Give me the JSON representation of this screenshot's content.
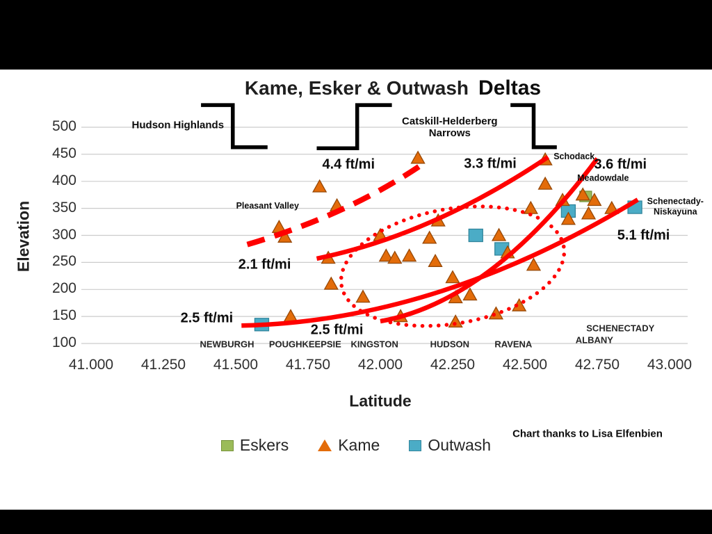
{
  "title": {
    "main": "Kame, Esker & Outwash",
    "added": "Deltas"
  },
  "axes": {
    "x_label": "Latitude",
    "y_label": "Elevation",
    "x_ticks": [
      "41.000",
      "41.250",
      "41.500",
      "41.750",
      "42.000",
      "42.250",
      "42.500",
      "42.750",
      "43.000"
    ],
    "y_ticks": [
      "500",
      "450",
      "400",
      "350",
      "300",
      "250",
      "200",
      "150",
      "100"
    ]
  },
  "legend": [
    {
      "label": "Eskers",
      "marker": "square",
      "color": "#9BBB59",
      "border": "#77933C"
    },
    {
      "label": "Kame",
      "marker": "triangle",
      "color": "#E36C0A",
      "border": "#974806"
    },
    {
      "label": "Outwash",
      "marker": "square",
      "color": "#4BACC6",
      "border": "#31859C"
    }
  ],
  "credit": "Chart thanks to Lisa Elfenbien",
  "chart_data": {
    "type": "scatter",
    "title": "Kame, Esker & Outwash Deltas",
    "xlabel": "Latitude",
    "ylabel": "Elevation",
    "xlim": [
      41.0,
      43.0
    ],
    "ylim": [
      100,
      500
    ],
    "x_tick_step": 0.25,
    "y_tick_step": 50,
    "grid": "horizontal",
    "legend_position": "bottom",
    "series": [
      {
        "name": "Eskers",
        "marker": "square",
        "color": "#9BBB59",
        "border": "#77933C",
        "points": [
          [
            42.71,
            372
          ]
        ]
      },
      {
        "name": "Kame",
        "marker": "triangle",
        "color": "#E36C0A",
        "border": "#974806",
        "points": [
          [
            41.65,
            315
          ],
          [
            41.67,
            297
          ],
          [
            41.69,
            150
          ],
          [
            41.79,
            390
          ],
          [
            41.82,
            258
          ],
          [
            41.83,
            210
          ],
          [
            41.85,
            355
          ],
          [
            41.94,
            186
          ],
          [
            42.0,
            300
          ],
          [
            42.02,
            262
          ],
          [
            42.05,
            258
          ],
          [
            42.07,
            150
          ],
          [
            42.1,
            262
          ],
          [
            42.13,
            443
          ],
          [
            42.17,
            295
          ],
          [
            42.19,
            252
          ],
          [
            42.2,
            327
          ],
          [
            42.25,
            222
          ],
          [
            42.26,
            185
          ],
          [
            42.26,
            140
          ],
          [
            42.31,
            190
          ],
          [
            42.4,
            155
          ],
          [
            42.41,
            300
          ],
          [
            42.44,
            268
          ],
          [
            42.48,
            170
          ],
          [
            42.52,
            350
          ],
          [
            42.53,
            245
          ],
          [
            42.57,
            440
          ],
          [
            42.57,
            395
          ],
          [
            42.63,
            365
          ],
          [
            42.65,
            330
          ],
          [
            42.7,
            375
          ],
          [
            42.72,
            340
          ],
          [
            42.74,
            365
          ],
          [
            42.8,
            350
          ]
        ]
      },
      {
        "name": "Outwash",
        "marker": "square",
        "color": "#4BACC6",
        "border": "#31859C",
        "points": [
          [
            41.59,
            135
          ],
          [
            42.33,
            300
          ],
          [
            42.42,
            275
          ],
          [
            42.65,
            345
          ],
          [
            42.88,
            352
          ]
        ]
      }
    ],
    "annotations": {
      "line_color": "#FF0000",
      "trend_lines": [
        {
          "label": "4.4 ft/mi",
          "style": "dashed",
          "points": [
            [
              41.54,
              283
            ],
            [
              41.9,
              340
            ],
            [
              42.16,
              437
            ]
          ]
        },
        {
          "label": "3.3 ft/mi",
          "style": "solid",
          "points": [
            [
              41.78,
              257
            ],
            [
              42.18,
              301
            ],
            [
              42.58,
              445
            ]
          ]
        },
        {
          "label": "2.5 ft/mi to 5.1 ft/mi",
          "style": "solid",
          "points": [
            [
              41.52,
              133
            ],
            [
              42.2,
              141
            ],
            [
              42.89,
              366
            ]
          ]
        },
        {
          "label": "2.5 ft/mi to 3.6 ft/mi",
          "style": "solid",
          "points": [
            [
              42.0,
              141
            ],
            [
              42.38,
              177
            ],
            [
              42.75,
              442
            ]
          ]
        }
      ],
      "slope_labels": [
        {
          "text": "4.4 ft/mi",
          "lat": 41.89,
          "el": 430
        },
        {
          "text": "3.3 ft/mi",
          "lat": 42.38,
          "el": 432
        },
        {
          "text": "3.6 ft/mi",
          "lat": 42.83,
          "el": 430
        },
        {
          "text": "2.1 ft/mi",
          "lat": 41.6,
          "el": 245
        },
        {
          "text": "2.5 ft/mi",
          "lat": 41.4,
          "el": 146
        },
        {
          "text": "2.5 ft/mi",
          "lat": 41.85,
          "el": 124
        },
        {
          "text": "5.1 ft/mi",
          "lat": 42.91,
          "el": 299
        }
      ],
      "region_labels": [
        {
          "lines": [
            "Hudson Highlands"
          ],
          "lat": 41.3,
          "el": 504
        },
        {
          "lines": [
            "Catskill-Helderberg",
            "Narrows"
          ],
          "lat": 42.24,
          "el": 500
        }
      ],
      "place_labels": [
        {
          "lines": [
            "Pleasant Valley"
          ],
          "lat": 41.61,
          "el": 355
        },
        {
          "lines": [
            "Schodack"
          ],
          "lat": 42.67,
          "el": 446
        },
        {
          "lines": [
            "Meadowdale"
          ],
          "lat": 42.77,
          "el": 406
        },
        {
          "lines": [
            "Schenectady-",
            "Niskayuna"
          ],
          "lat": 43.02,
          "el": 353
        }
      ],
      "city_labels": [
        {
          "text": "NEWBURGH",
          "lat": 41.47,
          "el": 97
        },
        {
          "text": "POUGHKEEPSIE",
          "lat": 41.74,
          "el": 97
        },
        {
          "text": "KINGSTON",
          "lat": 41.98,
          "el": 97
        },
        {
          "text": "HUDSON",
          "lat": 42.24,
          "el": 97
        },
        {
          "text": "RAVENA",
          "lat": 42.46,
          "el": 97
        },
        {
          "text": "ALBANY",
          "lat": 42.74,
          "el": 105
        },
        {
          "text": "SCHENECTADY",
          "lat": 42.83,
          "el": 127
        }
      ],
      "highlight_ellipse": {
        "lat": 42.25,
        "el": 243,
        "rx_lat": 0.39,
        "ry_el": 106,
        "rotation_deg": -10
      },
      "region_brackets": [
        {
          "points": [
            [
              41.38,
              541
            ],
            [
              41.49,
              541
            ],
            [
              41.49,
              463
            ],
            [
              41.61,
              463
            ]
          ]
        },
        {
          "points": [
            [
              41.78,
              461
            ],
            [
              41.92,
              461
            ],
            [
              41.92,
              541
            ],
            [
              42.04,
              541
            ]
          ]
        },
        {
          "points": [
            [
              42.45,
              541
            ],
            [
              42.53,
              541
            ],
            [
              42.53,
              463
            ],
            [
              42.61,
              463
            ]
          ]
        }
      ]
    }
  }
}
